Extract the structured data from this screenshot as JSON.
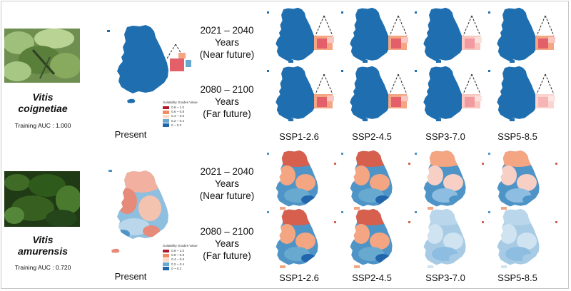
{
  "species": [
    {
      "name_line1": "Vitis",
      "name_line2": "coignetiae",
      "auc": "Training AUC : 1.000",
      "present_label": "Present",
      "periods": [
        {
          "line1": "2021 – 2040",
          "line2": "Years",
          "line3": "(Near future)"
        },
        {
          "line1": "2080 – 2100",
          "line2": "Years",
          "line3": "(Far future)"
        }
      ],
      "ssp_labels": [
        "SSP1-2.6",
        "SSP2-4.5",
        "SSP3-7.0",
        "SSP5-8.5"
      ]
    },
    {
      "name_line1": "Vitis",
      "name_line2": "amurensis",
      "auc": "Training AUC : 0.720",
      "present_label": "Present",
      "periods": [
        {
          "line1": "2021 – 2040",
          "line2": "Years",
          "line3": "(Near future)"
        },
        {
          "line1": "2080 – 2100",
          "line2": "Years",
          "line3": "(Far future)"
        }
      ],
      "ssp_labels": [
        "SSP1-2.6",
        "SSP2-4.5",
        "SSP3-7.0",
        "SSP5-8.5"
      ]
    }
  ],
  "legend": {
    "title": "Suitability Grades Value",
    "classes": [
      {
        "label": "0.8 ~ 1.0",
        "color": "#b2182b"
      },
      {
        "label": "0.6 ~ 0.8",
        "color": "#ef8a62"
      },
      {
        "label": "0.4 ~ 0.6",
        "color": "#fddbc7"
      },
      {
        "label": "0.2 ~ 0.4",
        "color": "#67a9cf"
      },
      {
        "label": "0 ~ 0.2",
        "color": "#2166ac"
      }
    ]
  },
  "colors": {
    "map_blue": "#1f6fb0",
    "map_light_blue": "#8dbde0",
    "map_red": "#d6604d",
    "map_pink": "#f4a582"
  }
}
